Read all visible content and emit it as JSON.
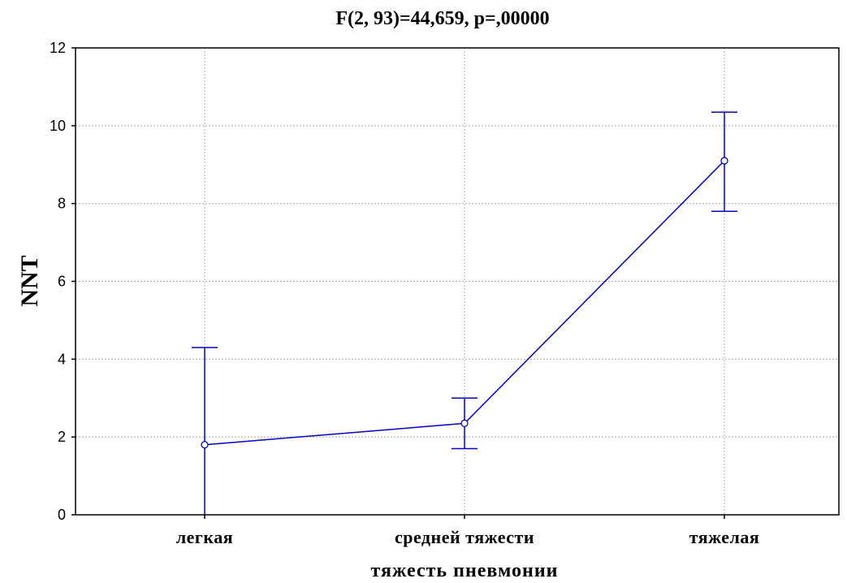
{
  "chart_data": {
    "type": "line",
    "title": "F(2, 93)=44,659, p=,00000",
    "xlabel": "тяжесть пневмонии",
    "ylabel": "NNT",
    "categories": [
      "легкая",
      "средней тяжести",
      "тяжелая"
    ],
    "series": [
      {
        "values": [
          1.8,
          2.35,
          9.1
        ],
        "error_lower": [
          0.0,
          1.7,
          7.8
        ],
        "error_upper": [
          4.3,
          3.0,
          10.35
        ],
        "color": "#0000cc"
      }
    ],
    "ylim": [
      0,
      12
    ],
    "yticks": [
      "0",
      "2",
      "4",
      "6",
      "8",
      "10",
      "12"
    ],
    "ytick_values": [
      0,
      2,
      4,
      6,
      8,
      10,
      12
    ],
    "grid": true
  }
}
